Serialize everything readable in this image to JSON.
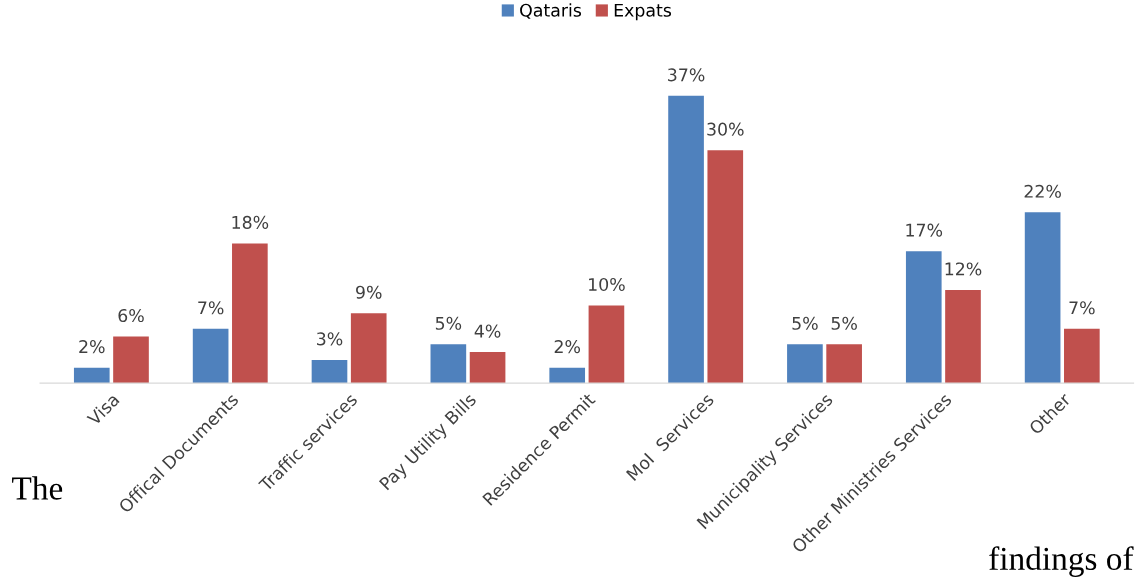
{
  "chart_data": {
    "type": "bar",
    "categories": [
      "Visa",
      "Offical Documents",
      "Traffic services",
      "Pay Utility Bills",
      "Residence Permit",
      "MoI  Services",
      "Municipality Services",
      "Other Ministries Services",
      "Other"
    ],
    "series": [
      {
        "name": "Qataris",
        "color": "#4f81bd",
        "values": [
          2,
          7,
          3,
          5,
          2,
          37,
          5,
          17,
          22
        ],
        "value_labels": [
          "2%",
          "7%",
          "3%",
          "5%",
          "2%",
          "37%",
          "5%",
          "17%",
          "22%"
        ]
      },
      {
        "name": "Expats",
        "color": "#c0504d",
        "values": [
          6,
          18,
          9,
          4,
          10,
          30,
          5,
          12,
          7
        ],
        "value_labels": [
          "6%",
          "18%",
          "9%",
          "4%",
          "10%",
          "30%",
          "5%",
          "12%",
          "7%"
        ]
      }
    ],
    "legend": "top",
    "annotations": [
      "The",
      "findings of"
    ]
  }
}
